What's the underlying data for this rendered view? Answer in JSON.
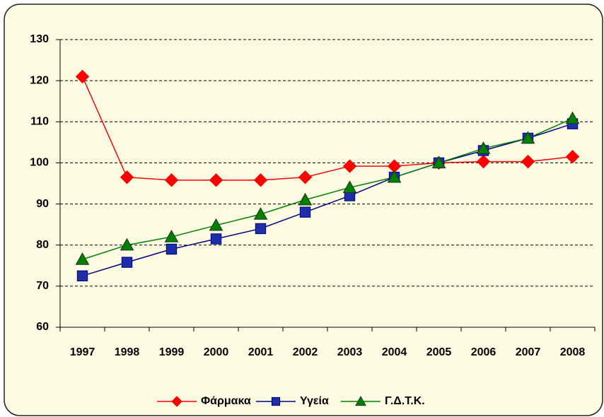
{
  "chart_data": {
    "type": "line",
    "categories": [
      "1997",
      "1998",
      "1999",
      "2000",
      "2001",
      "2002",
      "2003",
      "2004",
      "2005",
      "2006",
      "2007",
      "2008"
    ],
    "series": [
      {
        "name": "Φάρμακα",
        "color": "#ff0000",
        "marker": "diamond",
        "values": [
          121,
          96.5,
          95.8,
          95.8,
          95.8,
          96.5,
          99.2,
          99.2,
          100,
          100.3,
          100.3,
          101.5
        ]
      },
      {
        "name": "Υγεία",
        "color": "#000080",
        "marker": "square",
        "values": [
          72.5,
          75.8,
          79,
          81.5,
          84,
          88,
          92,
          96.5,
          100,
          103,
          106,
          109.5
        ]
      },
      {
        "name": "Γ.Δ.Τ.Κ.",
        "color": "#008000",
        "marker": "triangle",
        "values": [
          76.5,
          80,
          82,
          84.8,
          87.5,
          91,
          94,
          96.5,
          100,
          103.5,
          106,
          110.8
        ]
      }
    ],
    "ylim": [
      60,
      130
    ],
    "yticks": [
      60,
      70,
      80,
      90,
      100,
      110,
      120,
      130
    ],
    "grid": true,
    "legend": "bottom"
  }
}
